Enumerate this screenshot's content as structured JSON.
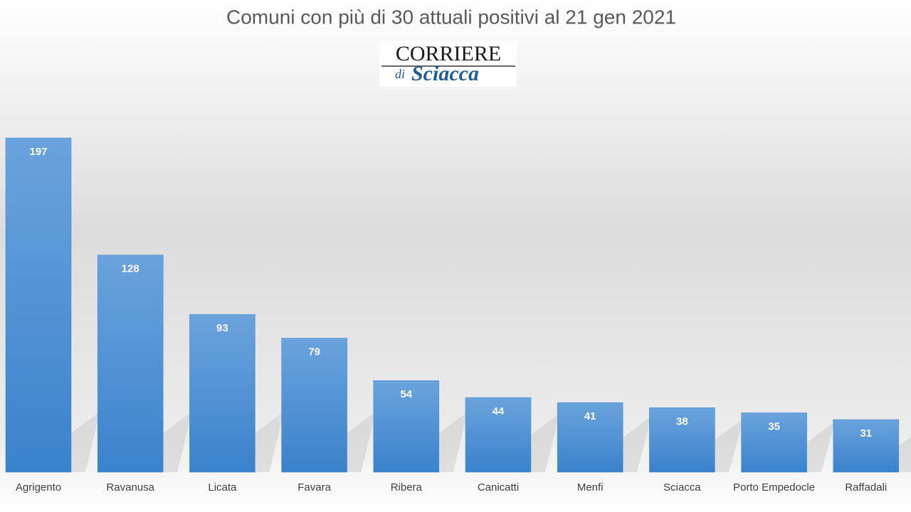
{
  "chart_data": {
    "type": "bar",
    "title": "Comuni con più di 30 attuali positivi al 21 gen 2021",
    "logo": [
      "CORRIERE",
      "di",
      "Sciacca"
    ],
    "categories": [
      "Agrigento",
      "Ravanusa",
      "Licata",
      "Favara",
      "Ribera",
      "Canicatti",
      "Menfi",
      "Sciacca",
      "Porto Empedocle",
      "Raffadali"
    ],
    "values": [
      197,
      128,
      93,
      79,
      54,
      44,
      41,
      38,
      35,
      31
    ],
    "color": "#3f86d0"
  }
}
